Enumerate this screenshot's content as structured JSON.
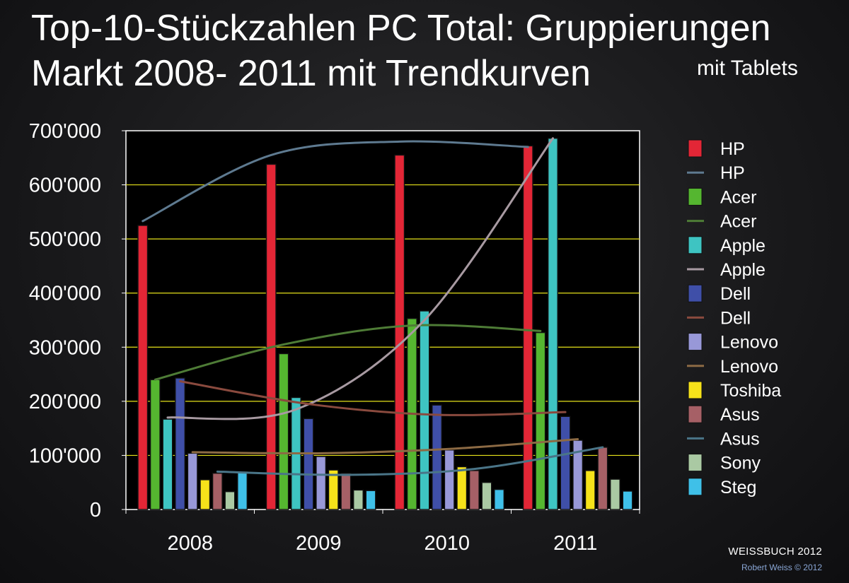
{
  "title_line1": "Top-10-Stückzahlen PC Total: Gruppierungen",
  "title_line2": "Markt 2008- 2011 mit Trendkurven",
  "subtitle": "mit Tablets",
  "footer_title": "WEISSBUCH 2012",
  "footer_copyright": "Robert Weiss © 2012",
  "colors": {
    "HP": "#e32636",
    "Acer": "#55b630",
    "Apple": "#3ec4c2",
    "Dell": "#3f4fa8",
    "Lenovo": "#9898d8",
    "Toshiba": "#f6e21a",
    "Asus": "#a66066",
    "Sony": "#aac9a3",
    "Steg": "#3fc0e8",
    "grid": "#e6e21a"
  },
  "chart_data": {
    "type": "bar",
    "categories": [
      "2008",
      "2009",
      "2010",
      "2011"
    ],
    "ylim": [
      0,
      700000
    ],
    "yticks": [
      "0",
      "100'000",
      "200'000",
      "300'000",
      "400'000",
      "500'000",
      "600'000",
      "700'000"
    ],
    "grid": true,
    "legend_position": "right",
    "series": [
      {
        "name": "HP",
        "values": [
          525000,
          638000,
          655000,
          672000
        ]
      },
      {
        "name": "Acer",
        "values": [
          240000,
          288000,
          353000,
          327000
        ]
      },
      {
        "name": "Apple",
        "values": [
          167000,
          207000,
          367000,
          686000
        ]
      },
      {
        "name": "Dell",
        "values": [
          243000,
          168000,
          193000,
          172000
        ]
      },
      {
        "name": "Lenovo",
        "values": [
          104000,
          98000,
          110000,
          128000
        ]
      },
      {
        "name": "Toshiba",
        "values": [
          55000,
          73000,
          79000,
          72000
        ]
      },
      {
        "name": "Asus",
        "values": [
          67000,
          67000,
          72000,
          115000
        ]
      },
      {
        "name": "Sony",
        "values": [
          33000,
          36000,
          50000,
          56000
        ]
      },
      {
        "name": "Steg",
        "values": [
          70000,
          35000,
          37000,
          34000
        ]
      }
    ],
    "trendlines": [
      {
        "name": "HP",
        "color": "#5e7a90",
        "values": [
          533000,
          655000,
          680000,
          670000
        ]
      },
      {
        "name": "Acer",
        "color": "#4e7c36",
        "values": [
          240000,
          305000,
          340000,
          330000
        ]
      },
      {
        "name": "Apple",
        "color": "#a89aa2",
        "values": [
          170000,
          185000,
          350000,
          686000
        ]
      },
      {
        "name": "Dell",
        "color": "#8a4a3e",
        "values": [
          237000,
          195000,
          175000,
          180000
        ]
      },
      {
        "name": "Lenovo",
        "color": "#8c6a44",
        "values": [
          106000,
          104000,
          112000,
          130000
        ]
      },
      {
        "name": "Asus",
        "color": "#4a7588",
        "values": [
          70000,
          64000,
          75000,
          115000
        ]
      }
    ],
    "legend": [
      {
        "label": "HP",
        "kind": "bar",
        "color": "#e32636"
      },
      {
        "label": "HP",
        "kind": "line",
        "color": "#5e7a90"
      },
      {
        "label": "Acer",
        "kind": "bar",
        "color": "#55b630"
      },
      {
        "label": "Acer",
        "kind": "line",
        "color": "#4e7c36"
      },
      {
        "label": "Apple",
        "kind": "bar",
        "color": "#3ec4c2"
      },
      {
        "label": "Apple",
        "kind": "line",
        "color": "#a89aa2"
      },
      {
        "label": "Dell",
        "kind": "bar",
        "color": "#3f4fa8"
      },
      {
        "label": "Dell",
        "kind": "line",
        "color": "#8a4a3e"
      },
      {
        "label": "Lenovo",
        "kind": "bar",
        "color": "#9898d8"
      },
      {
        "label": "Lenovo",
        "kind": "line",
        "color": "#8c6a44"
      },
      {
        "label": "Toshiba",
        "kind": "bar",
        "color": "#f6e21a"
      },
      {
        "label": "Asus",
        "kind": "bar",
        "color": "#a66066"
      },
      {
        "label": "Asus",
        "kind": "line",
        "color": "#4a7588"
      },
      {
        "label": "Sony",
        "kind": "bar",
        "color": "#aac9a3"
      },
      {
        "label": "Steg",
        "kind": "bar",
        "color": "#3fc0e8"
      }
    ]
  }
}
